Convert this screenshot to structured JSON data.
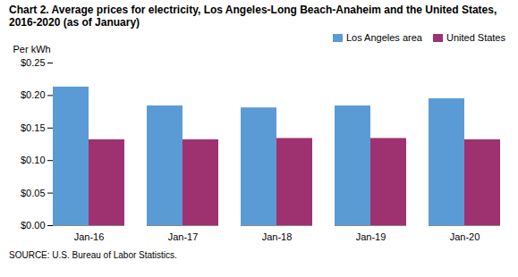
{
  "chart_data": {
    "type": "bar",
    "title": "Chart 2. Average prices for electricity, Los Angeles-Long Beach-Anaheim and the United States, 2016-2020  (as of January)",
    "source": "SOURCE: U.S. Bureau of Labor Statistics.",
    "ylabel": "Per kWh",
    "categories": [
      "Jan-16",
      "Jan-17",
      "Jan-18",
      "Jan-19",
      "Jan-20"
    ],
    "series": [
      {
        "name": "Los Angeles area",
        "color": "#5B9BD5",
        "values": [
          0.213,
          0.184,
          0.181,
          0.184,
          0.195
        ]
      },
      {
        "name": "United States",
        "color": "#9E3270",
        "values": [
          0.132,
          0.132,
          0.134,
          0.134,
          0.132
        ]
      }
    ],
    "ylim": [
      0,
      0.25
    ],
    "yticks": [
      {
        "value": 0.0,
        "label": "$0.00"
      },
      {
        "value": 0.05,
        "label": "$0.05"
      },
      {
        "value": 0.1,
        "label": "$0.10"
      },
      {
        "value": 0.15,
        "label": "$0.15"
      },
      {
        "value": 0.2,
        "label": "$0.20"
      },
      {
        "value": 0.25,
        "label": "$0.25"
      }
    ],
    "legend": "upper right",
    "grid": false
  }
}
